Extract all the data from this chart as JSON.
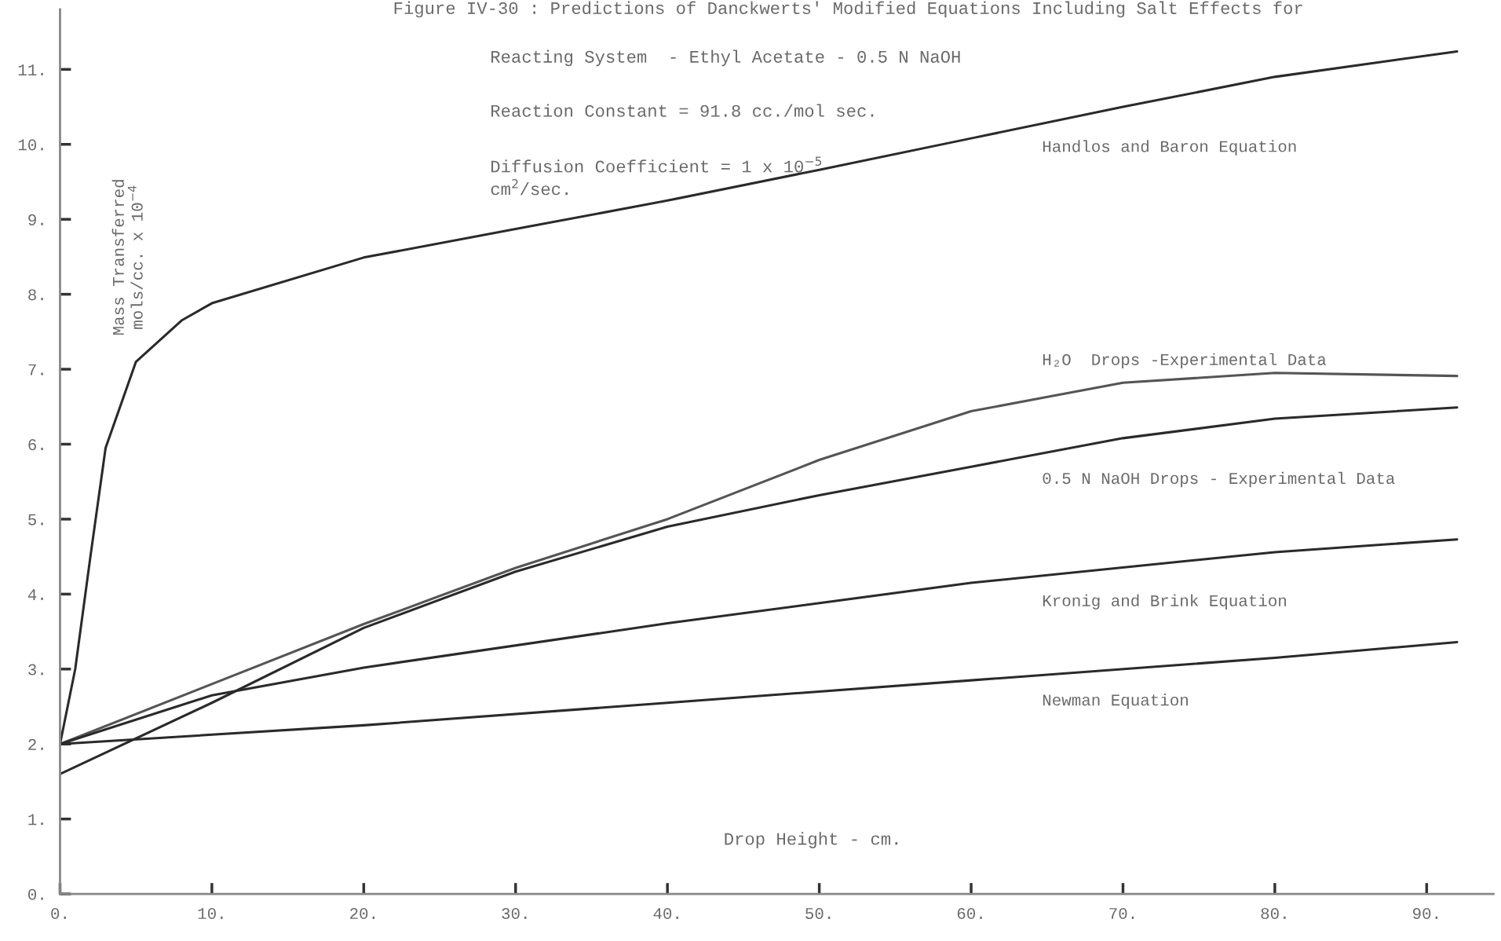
{
  "chart_data": {
    "type": "line",
    "title": "Figure IV-30 : Predictions of Danckwerts' Modified Equations Including Salt Effects for",
    "subtitle": "Reacting System  - Ethyl Acetate - 0.5 N NaOH",
    "annotations": [
      "Reaction Constant = 91.8 cc./mol sec.",
      "Diffusion Coefficient = 1 x 10$^{−5}$\ncm$^{2}$/sec."
    ],
    "xlabel": "Drop Height - cm.",
    "ylabel": "Mass Transferred\nmols/cc. x 10$^{−4}$",
    "xlim": [
      0,
      94.4
    ],
    "ylim": [
      0,
      11.8
    ],
    "xticks": [
      {
        "value": 0,
        "label": "0."
      },
      {
        "value": 10,
        "label": "10."
      },
      {
        "value": 20,
        "label": "20."
      },
      {
        "value": 30,
        "label": "30."
      },
      {
        "value": 40,
        "label": "40."
      },
      {
        "value": 50,
        "label": "50."
      },
      {
        "value": 60,
        "label": "60."
      },
      {
        "value": 70,
        "label": "70."
      },
      {
        "value": 80,
        "label": "80."
      },
      {
        "value": 90,
        "label": "90."
      }
    ],
    "yticks": [
      {
        "value": 0,
        "label": "0."
      },
      {
        "value": 1,
        "label": "1."
      },
      {
        "value": 2,
        "label": "2."
      },
      {
        "value": 3,
        "label": "3."
      },
      {
        "value": 4,
        "label": "4."
      },
      {
        "value": 5,
        "label": "5."
      },
      {
        "value": 6,
        "label": "6."
      },
      {
        "value": 7,
        "label": "7."
      },
      {
        "value": 8,
        "label": "8."
      },
      {
        "value": 9,
        "label": "9."
      },
      {
        "value": 10,
        "label": "10."
      },
      {
        "value": 11,
        "label": "11."
      }
    ],
    "grid": false,
    "legend": false,
    "marker": "none",
    "line_style": "solid",
    "series": [
      {
        "name": "Handlos and Baron Equation",
        "color": "#2a2a2a",
        "x": [
          0,
          1,
          2,
          3,
          5,
          8,
          10,
          20,
          30,
          40,
          50,
          60,
          70,
          80,
          92
        ],
        "values": [
          2.0,
          3.0,
          4.5,
          5.95,
          7.1,
          7.65,
          7.88,
          8.49,
          8.87,
          9.25,
          9.66,
          10.08,
          10.5,
          10.9,
          11.24
        ]
      },
      {
        "name": "H₂O  Drops -Experimental Data",
        "color": "#555555",
        "x": [
          0,
          10,
          20,
          30,
          40,
          50,
          60,
          70,
          80,
          92
        ],
        "values": [
          2.0,
          2.8,
          3.6,
          4.35,
          5.0,
          5.79,
          6.44,
          6.82,
          6.95,
          6.91
        ]
      },
      {
        "name": "0.5 N NaOH Drops - Experimental Data",
        "color": "#2a2a2a",
        "x": [
          0,
          10,
          20,
          30,
          40,
          50,
          60,
          70,
          80,
          92
        ],
        "values": [
          1.6,
          2.55,
          3.55,
          4.3,
          4.9,
          5.32,
          5.7,
          6.08,
          6.34,
          6.49
        ]
      },
      {
        "name": "Kronig and Brink Equation",
        "color": "#2a2a2a",
        "x": [
          0,
          10,
          20,
          40,
          60,
          80,
          92
        ],
        "values": [
          2.0,
          2.65,
          3.02,
          3.61,
          4.15,
          4.56,
          4.73
        ]
      },
      {
        "name": "Newman Equation",
        "color": "#2a2a2a",
        "x": [
          0,
          20,
          40,
          60,
          80,
          92
        ],
        "values": [
          2.0,
          2.25,
          2.55,
          2.85,
          3.15,
          3.36
        ]
      }
    ]
  }
}
